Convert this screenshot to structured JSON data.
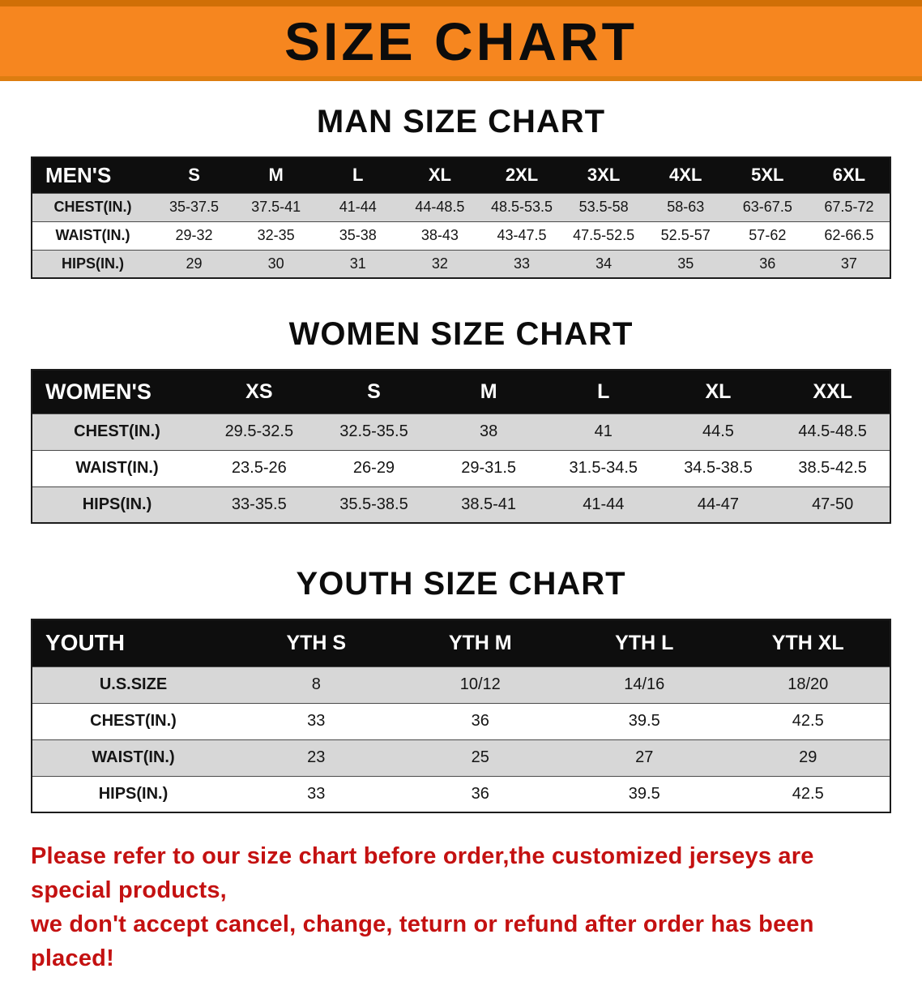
{
  "banner": {
    "title": "SIZE CHART"
  },
  "colors": {
    "banner_bg": "#f6861f",
    "banner_edge": "#d06f06",
    "table_header_bg": "#0e0e0e",
    "row_stripe": "#d7d7d7",
    "footer_text": "#c41111"
  },
  "sections": {
    "men": {
      "title": "MAN SIZE CHART",
      "table": {
        "header": [
          "MEN'S",
          "S",
          "M",
          "L",
          "XL",
          "2XL",
          "3XL",
          "4XL",
          "5XL",
          "6XL"
        ],
        "rows": [
          [
            "CHEST(IN.)",
            "35-37.5",
            "37.5-41",
            "41-44",
            "44-48.5",
            "48.5-53.5",
            "53.5-58",
            "58-63",
            "63-67.5",
            "67.5-72"
          ],
          [
            "WAIST(IN.)",
            "29-32",
            "32-35",
            "35-38",
            "38-43",
            "43-47.5",
            "47.5-52.5",
            "52.5-57",
            "57-62",
            "62-66.5"
          ],
          [
            "HIPS(IN.)",
            "29",
            "30",
            "31",
            "32",
            "33",
            "34",
            "35",
            "36",
            "37"
          ]
        ]
      }
    },
    "women": {
      "title": "WOMEN SIZE CHART",
      "table": {
        "header": [
          "WOMEN'S",
          "XS",
          "S",
          "M",
          "L",
          "XL",
          "XXL"
        ],
        "rows": [
          [
            "CHEST(IN.)",
            "29.5-32.5",
            "32.5-35.5",
            "38",
            "41",
            "44.5",
            "44.5-48.5"
          ],
          [
            "WAIST(IN.)",
            "23.5-26",
            "26-29",
            "29-31.5",
            "31.5-34.5",
            "34.5-38.5",
            "38.5-42.5"
          ],
          [
            "HIPS(IN.)",
            "33-35.5",
            "35.5-38.5",
            "38.5-41",
            "41-44",
            "44-47",
            "47-50"
          ]
        ]
      }
    },
    "youth": {
      "title": "YOUTH SIZE CHART",
      "table": {
        "header": [
          "YOUTH",
          "YTH S",
          "YTH M",
          "YTH L",
          "YTH XL"
        ],
        "rows": [
          [
            "U.S.SIZE",
            "8",
            "10/12",
            "14/16",
            "18/20"
          ],
          [
            "CHEST(IN.)",
            "33",
            "36",
            "39.5",
            "42.5"
          ],
          [
            "WAIST(IN.)",
            "23",
            "25",
            "27",
            "29"
          ],
          [
            "HIPS(IN.)",
            "33",
            "36",
            "39.5",
            "42.5"
          ]
        ]
      }
    }
  },
  "footer": {
    "lines": [
      "Please refer to our size chart before order,the customized jerseys are special products,",
      "we don't accept cancel, change, teturn or refund after order has been placed!"
    ]
  }
}
